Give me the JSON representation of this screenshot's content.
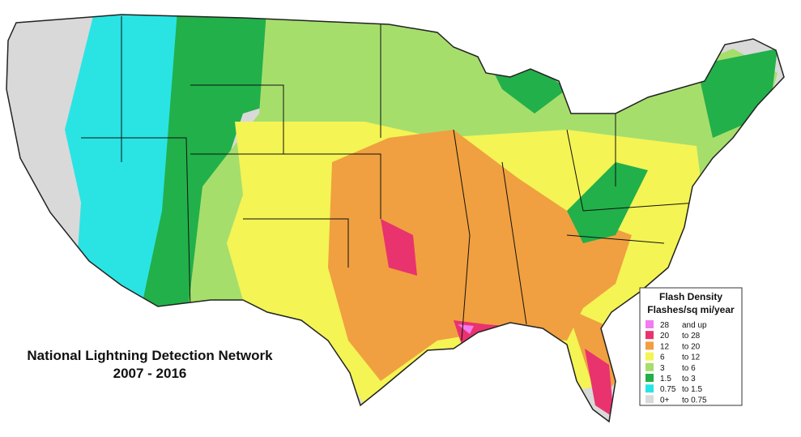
{
  "title": {
    "line1": "National Lightning Detection Network",
    "line2": "2007 - 2016"
  },
  "legend": {
    "title": "Flash Density",
    "subtitle": "Flashes/sq mi/year",
    "items": [
      {
        "low": "28",
        "high": "and up",
        "color": "#f27cf0"
      },
      {
        "low": "20",
        "high": "to 28",
        "color": "#e8336e"
      },
      {
        "low": "12",
        "high": "to 20",
        "color": "#f0a040"
      },
      {
        "low": "6",
        "high": "to 12",
        "color": "#f4f454"
      },
      {
        "low": "3",
        "high": "to 6",
        "color": "#a6de6c"
      },
      {
        "low": "1.5",
        "high": "to 3",
        "color": "#22b04a"
      },
      {
        "low": "0.75",
        "high": "to 1.5",
        "color": "#2ae4e4"
      },
      {
        "low": "0+",
        "high": "to 0.75",
        "color": "#d9d9d9"
      }
    ]
  }
}
